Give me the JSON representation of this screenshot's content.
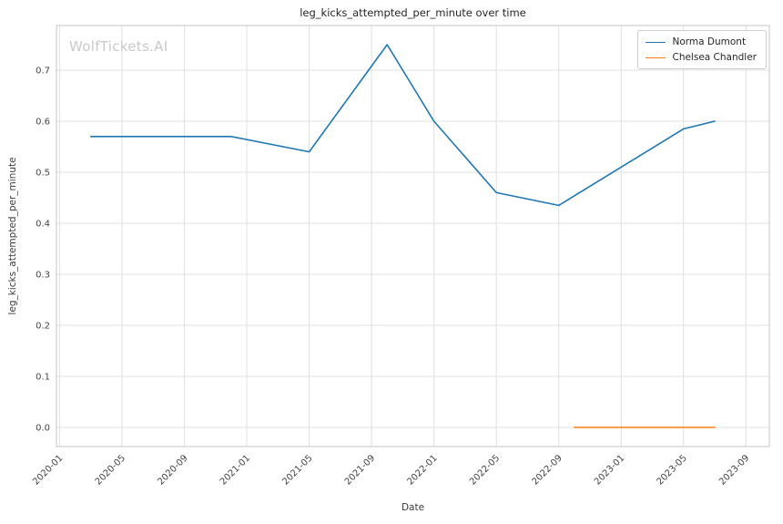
{
  "figure": {
    "watermark": "WolfTickets.AI"
  },
  "chart_data": {
    "type": "line",
    "title": "leg_kicks_attempted_per_minute over time",
    "xlabel": "Date",
    "ylabel": "leg_kicks_attempted_per_minute",
    "grid": true,
    "legend_position": "upper right",
    "x_tick_labels": [
      "2020-01",
      "2020-05",
      "2020-09",
      "2021-01",
      "2021-05",
      "2021-09",
      "2022-01",
      "2022-05",
      "2022-09",
      "2023-01",
      "2023-05",
      "2023-09"
    ],
    "y_tick_labels": [
      "0.0",
      "0.1",
      "0.2",
      "0.3",
      "0.4",
      "0.5",
      "0.6",
      "0.7"
    ],
    "x_range_months": [
      -0.2,
      45.5
    ],
    "y_range": [
      -0.0375,
      0.7875
    ],
    "series": [
      {
        "name": "Norma Dumont",
        "color": "#1f77b4",
        "points": [
          [
            "2020-03",
            0.57
          ],
          [
            "2020-12",
            0.57
          ],
          [
            "2021-05",
            0.54
          ],
          [
            "2021-10",
            0.75
          ],
          [
            "2022-01",
            0.6
          ],
          [
            "2022-05",
            0.46
          ],
          [
            "2022-09",
            0.435
          ],
          [
            "2023-01",
            0.51
          ],
          [
            "2023-05",
            0.585
          ],
          [
            "2023-07",
            0.6
          ]
        ]
      },
      {
        "name": "Chelsea Chandler",
        "color": "#ff7f0e",
        "points": [
          [
            "2022-10",
            0.0
          ],
          [
            "2023-07",
            0.0
          ]
        ]
      }
    ]
  }
}
